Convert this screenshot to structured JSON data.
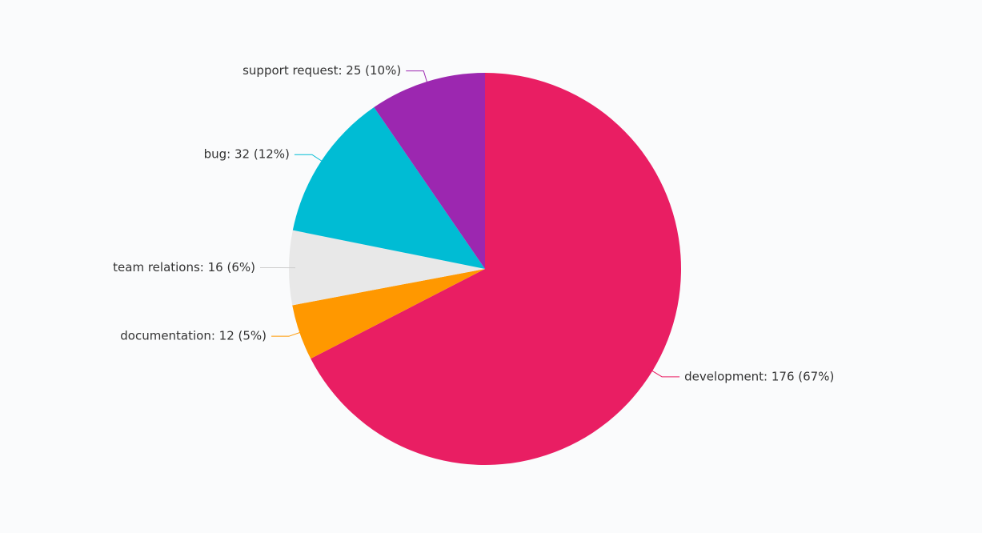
{
  "chart_data": {
    "type": "pie",
    "categories": [
      "development",
      "documentation",
      "team relations",
      "bug",
      "support request"
    ],
    "values": [
      176,
      12,
      16,
      32,
      25
    ],
    "value_labels": [
      "development: 176 (67%)",
      "documentation: 12 (5%)",
      "team relations: 16 (6%)",
      "bug: 32 (12%)",
      "support request: 25 (10%)"
    ],
    "colors": [
      "#e91e63",
      "#ff9800",
      "#e8e8e8",
      "#00bcd4",
      "#9c27b0"
    ]
  }
}
